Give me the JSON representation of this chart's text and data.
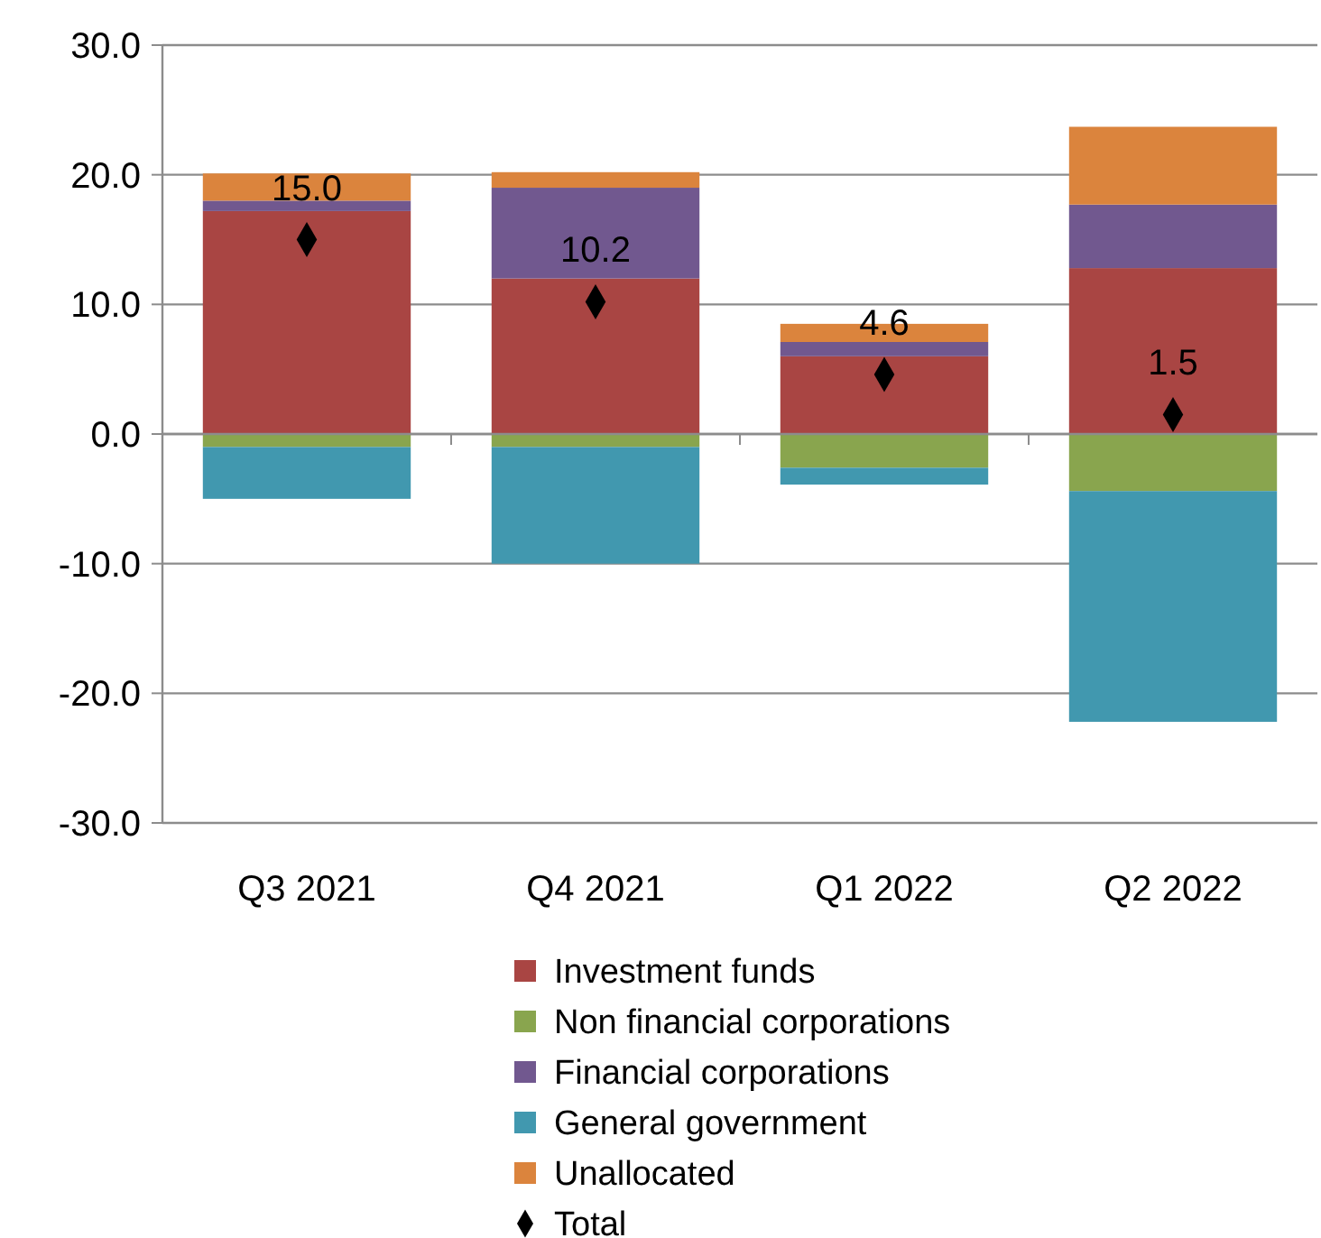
{
  "chart_data": {
    "type": "bar",
    "stacked": true,
    "categories": [
      "Q3 2021",
      "Q4 2021",
      "Q1 2022",
      "Q2 2022"
    ],
    "ylim": [
      -30,
      30
    ],
    "yticks": [
      {
        "value": -30,
        "label": "-30.0"
      },
      {
        "value": -20,
        "label": "-20.0"
      },
      {
        "value": -10,
        "label": "-10.0"
      },
      {
        "value": 0,
        "label": "0.0"
      },
      {
        "value": 10,
        "label": "10.0"
      },
      {
        "value": 20,
        "label": "20.0"
      },
      {
        "value": 30,
        "label": "30.0"
      }
    ],
    "grid": "y",
    "legend": "bottom",
    "series": [
      {
        "name": "Investment funds",
        "color": "#a94543",
        "values": [
          17.2,
          12.0,
          6.0,
          12.8
        ]
      },
      {
        "name": "Non financial corporations",
        "color": "#89a54e",
        "values": [
          -1.0,
          -1.0,
          -2.6,
          -4.4
        ]
      },
      {
        "name": "Financial corporations",
        "color": "#71588f",
        "values": [
          0.8,
          7.0,
          1.1,
          4.9
        ]
      },
      {
        "name": "General government",
        "color": "#4198af",
        "values": [
          -4.0,
          -9.0,
          -1.3,
          -17.8
        ]
      },
      {
        "name": "Unallocated",
        "color": "#db843d",
        "values": [
          2.1,
          1.2,
          1.4,
          6.0
        ]
      },
      {
        "name": "Total",
        "type": "scatter",
        "marker": "diamond",
        "color": "#000000",
        "values": [
          15.0,
          10.2,
          4.6,
          1.5
        ],
        "value_labels": [
          "15.0",
          "10.2",
          "4.6",
          "1.5"
        ]
      }
    ]
  }
}
